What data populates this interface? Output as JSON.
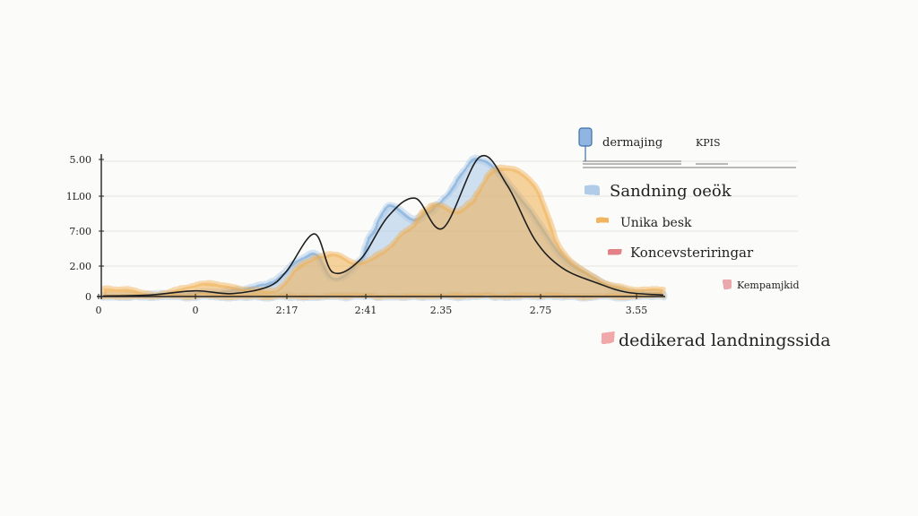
{
  "chart_data": {
    "type": "area",
    "y_ticks": [
      "0",
      "2.00",
      "7:00",
      "1L00",
      "5.00"
    ],
    "x_ticks": [
      "0",
      "0",
      "2:17",
      "2:41",
      "2.35",
      "2.75",
      "3.55"
    ],
    "ylim": [
      0,
      5
    ],
    "grid": true,
    "legend_position": "right",
    "legend_header": {
      "left": "dermajing",
      "right": "KPIS"
    },
    "legend": [
      {
        "label": "Sandning oeök",
        "color": "#a9c8e8"
      },
      {
        "label": "Unika besk",
        "color": "#f0ad4e"
      },
      {
        "label": "Koncevsteriringar",
        "color": "#e0737a"
      },
      {
        "label": "Kempamjkid",
        "color": "#e8a0a4"
      },
      {
        "label": "dedikerad landningssida",
        "color": "#f0a0a0"
      }
    ],
    "series": [
      {
        "name": "Sandning oeök",
        "color": "#a9c8e8",
        "x": [
          0,
          0.5,
          1,
          1.4,
          1.8,
          2.0,
          2.3,
          2.5,
          2.8,
          3.1,
          3.4,
          3.7,
          4.1,
          4.6,
          5.0,
          5.4,
          5.6,
          5.9,
          6.1
        ],
        "y": [
          0.05,
          0.05,
          0.1,
          0.2,
          0.45,
          0.9,
          1.5,
          0.65,
          1.3,
          3.1,
          2.7,
          3.4,
          4.8,
          3.2,
          1.4,
          0.55,
          0.25,
          0.1,
          0.05
        ]
      },
      {
        "name": "Unika besk",
        "color": "#f0ad4e",
        "x": [
          0,
          0.3,
          0.6,
          0.9,
          1.2,
          1.6,
          1.9,
          2.2,
          2.5,
          2.8,
          3.2,
          3.6,
          3.9,
          4.3,
          4.7,
          5.0,
          5.4,
          5.7,
          6.1
        ],
        "y": [
          0.3,
          0.25,
          0.05,
          0.35,
          0.45,
          0.25,
          0.3,
          1.2,
          1.5,
          1.2,
          2.0,
          3.2,
          3.0,
          4.5,
          3.9,
          1.6,
          0.6,
          0.3,
          0.25
        ]
      },
      {
        "name": "Koncevsteriringar",
        "color": "#222222",
        "x": [
          0,
          0.5,
          1.0,
          1.4,
          1.8,
          2.0,
          2.3,
          2.5,
          2.8,
          3.1,
          3.4,
          3.7,
          4.1,
          4.4,
          4.7,
          5.0,
          5.4,
          5.7,
          6.1
        ],
        "y": [
          0.02,
          0.05,
          0.2,
          0.1,
          0.35,
          0.9,
          2.2,
          0.85,
          1.3,
          2.8,
          3.45,
          2.4,
          4.9,
          3.9,
          2.0,
          1.0,
          0.45,
          0.15,
          0.05
        ]
      }
    ]
  }
}
